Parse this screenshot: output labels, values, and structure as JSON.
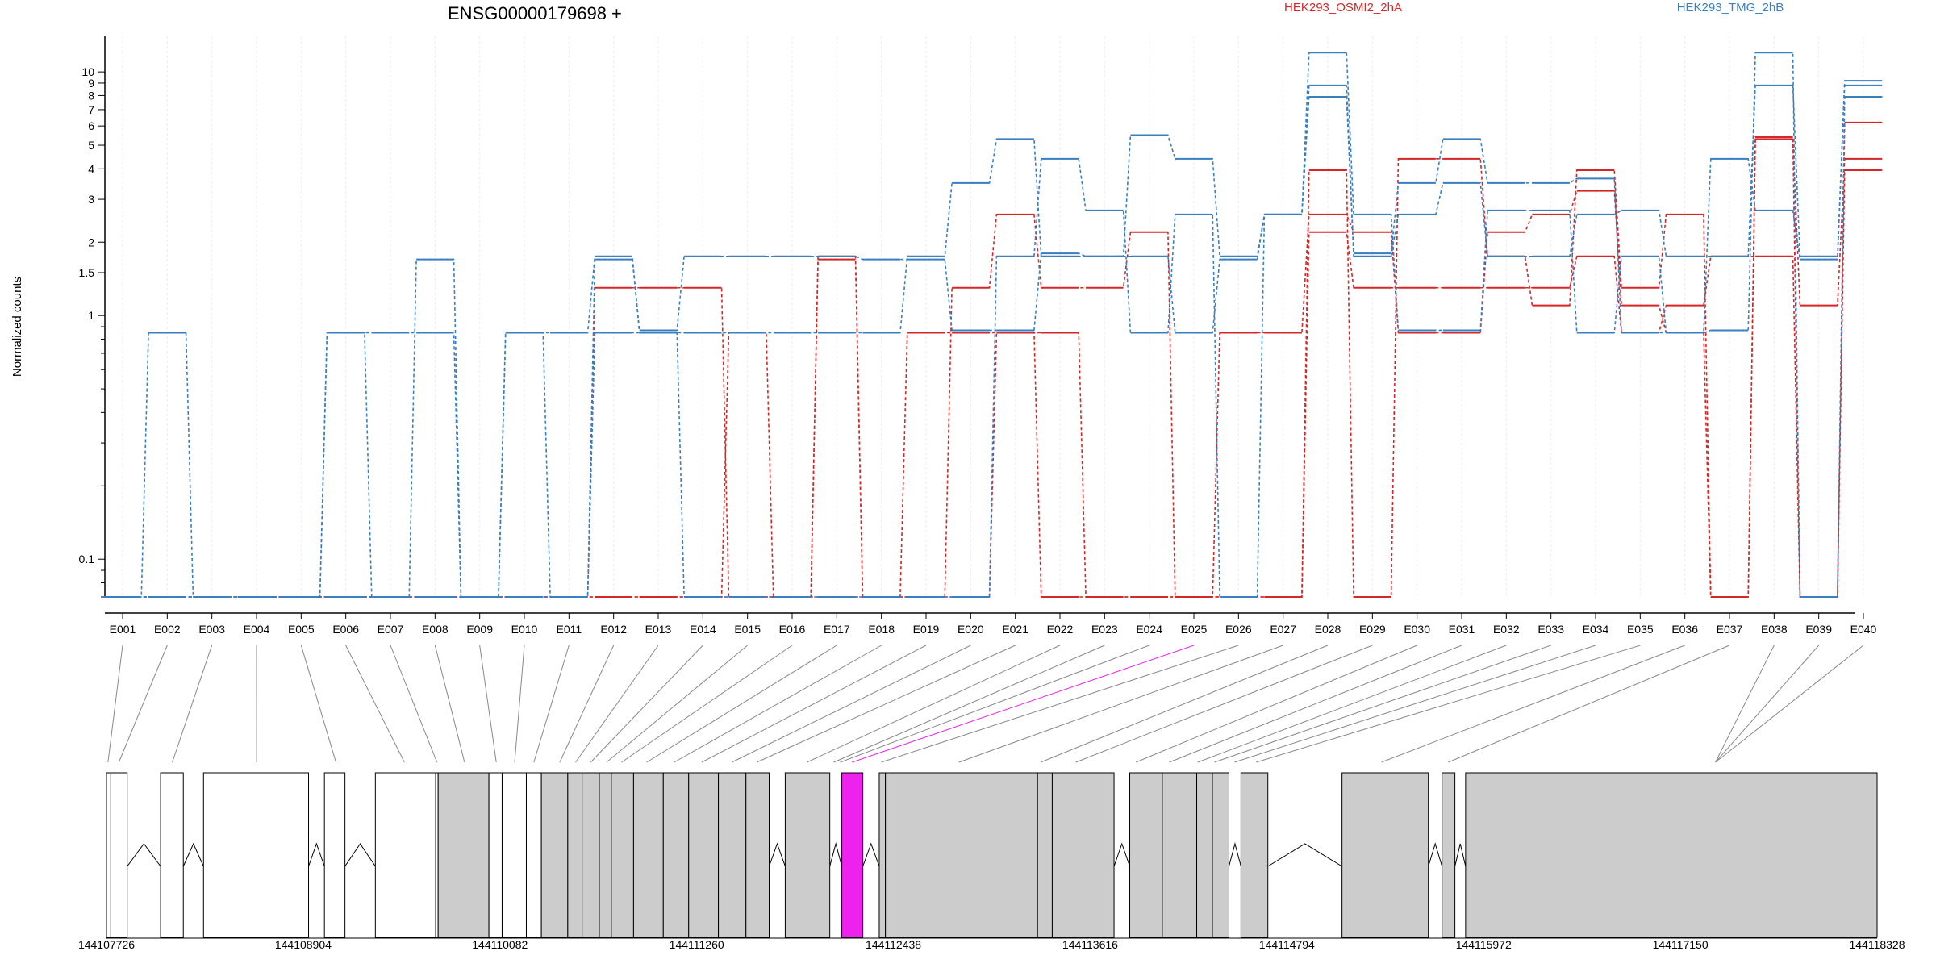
{
  "chart_data": {
    "type": "line",
    "title": "ENSG00000179698 +",
    "ylabel": "Normalized counts",
    "yscale": "log",
    "ylim": [
      0.07,
      14
    ],
    "yticks": [
      {
        "value": 0.1,
        "label": "0.1"
      },
      {
        "value": 1,
        "label": "1"
      },
      {
        "value": 1.5,
        "label": "1.5"
      },
      {
        "value": 2,
        "label": "2"
      },
      {
        "value": 3,
        "label": "3"
      },
      {
        "value": 4,
        "label": "4"
      },
      {
        "value": 5,
        "label": "5"
      },
      {
        "value": 6,
        "label": "6"
      },
      {
        "value": 7,
        "label": "7"
      },
      {
        "value": 8,
        "label": "8"
      },
      {
        "value": 9,
        "label": "9"
      },
      {
        "value": 10,
        "label": "10"
      }
    ],
    "grid": "vertical",
    "categories": [
      "E001",
      "E002",
      "E003",
      "E004",
      "E005",
      "E006",
      "E007",
      "E008",
      "E009",
      "E010",
      "E011",
      "E012",
      "E013",
      "E014",
      "E015",
      "E016",
      "E017",
      "E018",
      "E019",
      "E020",
      "E021",
      "E022",
      "E023",
      "E024",
      "E025",
      "E026",
      "E027",
      "E028",
      "E029",
      "E030",
      "E031",
      "E032",
      "E033",
      "E034",
      "E035",
      "E036",
      "E037",
      "E038",
      "E039",
      "E040"
    ],
    "legend": [
      {
        "label": "HEK293_OSMI2_2hA",
        "color": "#d62728"
      },
      {
        "label": "HEK293_TMG_2hB",
        "color": "#3a7fc1"
      }
    ],
    "series": [
      {
        "group": "HEK293_OSMI2_2hA",
        "color": "#d62728",
        "values": [
          0.07,
          0.07,
          0.07,
          0.07,
          0.07,
          0.07,
          0.07,
          0.07,
          0.07,
          0.07,
          0.07,
          0.07,
          0.07,
          0.07,
          0.07,
          0.07,
          1.75,
          0.07,
          0.85,
          0.85,
          0.85,
          0.85,
          0.07,
          0.07,
          0.07,
          0.85,
          0.85,
          2.6,
          2.2,
          0.85,
          0.85,
          2.2,
          2.6,
          3.25,
          1.1,
          0.85,
          0.07,
          5.4,
          0.07,
          6.2
        ]
      },
      {
        "group": "HEK293_OSMI2_2hA",
        "color": "#d62728",
        "values": [
          0.07,
          0.07,
          0.07,
          0.07,
          0.07,
          0.07,
          0.07,
          0.07,
          0.07,
          0.07,
          0.07,
          1.3,
          1.3,
          1.3,
          0.07,
          0.07,
          0.07,
          0.07,
          0.07,
          1.3,
          2.6,
          1.3,
          1.3,
          2.2,
          0.07,
          0.07,
          0.07,
          3.95,
          0.07,
          4.4,
          4.4,
          1.75,
          1.1,
          3.95,
          1.3,
          2.6,
          0.07,
          5.3,
          1.1,
          4.4
        ]
      },
      {
        "group": "HEK293_OSMI2_2hA",
        "color": "#d62728",
        "values": [
          0.07,
          0.07,
          0.07,
          0.07,
          0.07,
          0.07,
          0.07,
          0.07,
          0.07,
          0.07,
          0.07,
          0.07,
          0.07,
          0.07,
          0.85,
          0.07,
          1.7,
          0.07,
          0.07,
          0.07,
          0.85,
          0.07,
          0.07,
          0.07,
          0.07,
          0.07,
          0.07,
          2.2,
          1.3,
          1.3,
          1.3,
          1.3,
          1.3,
          1.75,
          0.85,
          1.1,
          1.75,
          1.75,
          0.07,
          3.95
        ]
      },
      {
        "group": "HEK293_TMG_2hB",
        "color": "#3a7fc1",
        "values": [
          0.07,
          0.85,
          0.07,
          0.07,
          0.07,
          0.85,
          0.85,
          0.85,
          0.07,
          0.85,
          0.85,
          1.75,
          0.85,
          0.85,
          0.85,
          0.85,
          0.85,
          0.85,
          1.75,
          3.5,
          5.3,
          1.75,
          1.75,
          1.75,
          0.85,
          1.7,
          2.6,
          8.8,
          1.8,
          3.5,
          5.3,
          3.5,
          3.5,
          3.65,
          0.85,
          0.85,
          4.4,
          2.7,
          1.7,
          9.2
        ]
      },
      {
        "group": "HEK293_TMG_2hB",
        "color": "#3a7fc1",
        "values": [
          0.07,
          0.07,
          0.07,
          0.07,
          0.07,
          0.07,
          0.07,
          1.7,
          0.07,
          0.07,
          0.07,
          1.7,
          0.87,
          1.75,
          1.75,
          1.75,
          1.75,
          1.7,
          1.7,
          0.87,
          0.87,
          1.8,
          1.75,
          5.5,
          4.4,
          1.75,
          2.6,
          12,
          2.6,
          0.87,
          0.87,
          2.7,
          2.7,
          0.85,
          1.75,
          0.85,
          0.87,
          12,
          0.07,
          7.9
        ]
      },
      {
        "group": "HEK293_TMG_2hB",
        "color": "#3a7fc1",
        "values": [
          0.07,
          0.07,
          0.07,
          0.07,
          0.07,
          0.85,
          0.07,
          0.07,
          0.07,
          0.85,
          0.07,
          0.85,
          0.85,
          0.07,
          0.07,
          0.07,
          0.07,
          0.07,
          0.07,
          0.07,
          1.75,
          4.4,
          2.7,
          0.85,
          2.6,
          0.07,
          2.6,
          7.9,
          1.75,
          2.6,
          3.5,
          1.75,
          1.75,
          2.6,
          2.7,
          1.75,
          1.75,
          8.8,
          1.75,
          8.8
        ]
      }
    ],
    "highlight": {
      "category": "E025",
      "color": "#ee22ee"
    },
    "genomic_axis": {
      "ticks": [
        {
          "value": 144107726,
          "label": "144107726"
        },
        {
          "value": 144108904,
          "label": "144108904"
        },
        {
          "value": 144110082,
          "label": "144110082"
        },
        {
          "value": 144111260,
          "label": "144111260"
        },
        {
          "value": 144112438,
          "label": "144112438"
        },
        {
          "value": 144113616,
          "label": "144113616"
        },
        {
          "value": 144114794,
          "label": "144114794"
        },
        {
          "value": 144115972,
          "label": "144115972"
        },
        {
          "value": 144117150,
          "label": "144117150"
        },
        {
          "value": 144118328,
          "label": "144118328"
        }
      ],
      "range": [
        144107726,
        144118328
      ]
    },
    "exon_regions": [
      {
        "id": "E001",
        "start": 144107726,
        "end": 144107752,
        "fill": "#ffffff"
      },
      {
        "id": "E002",
        "start": 144107752,
        "end": 144107850,
        "fill": "#ffffff"
      },
      {
        "id": "E003",
        "start": 144108050,
        "end": 144108186,
        "fill": "#ffffff"
      },
      {
        "id": "E004",
        "start": 144108307,
        "end": 144108936,
        "fill": "#ffffff"
      },
      {
        "id": "E005",
        "start": 144109031,
        "end": 144109154,
        "fill": "#ffffff"
      },
      {
        "id": "E006",
        "start": 144109336,
        "end": 144109697,
        "fill": "#ffffff"
      },
      {
        "id": "E007",
        "start": 144109697,
        "end": 144109712,
        "fill": "#ffffff"
      },
      {
        "id": "E008",
        "start": 144109712,
        "end": 144110016,
        "fill": "#cccccc"
      },
      {
        "id": "E009",
        "start": 144110016,
        "end": 144110095,
        "fill": "#ffffff"
      },
      {
        "id": "E010",
        "start": 144110095,
        "end": 144110240,
        "fill": "#ffffff"
      },
      {
        "id": "E011",
        "start": 144110240,
        "end": 144110330,
        "fill": "#ffffff"
      },
      {
        "id": "E012",
        "start": 144110330,
        "end": 144110488,
        "fill": "#cccccc"
      },
      {
        "id": "E013",
        "start": 144110488,
        "end": 144110574,
        "fill": "#cccccc"
      },
      {
        "id": "E014",
        "start": 144110574,
        "end": 144110677,
        "fill": "#cccccc"
      },
      {
        "id": "E015",
        "start": 144110677,
        "end": 144110749,
        "fill": "#cccccc"
      },
      {
        "id": "E016",
        "start": 144110749,
        "end": 144110882,
        "fill": "#cccccc"
      },
      {
        "id": "E017",
        "start": 144110882,
        "end": 144111060,
        "fill": "#cccccc"
      },
      {
        "id": "E018",
        "start": 144111060,
        "end": 144111212,
        "fill": "#cccccc"
      },
      {
        "id": "E019",
        "start": 144111212,
        "end": 144111390,
        "fill": "#cccccc"
      },
      {
        "id": "E020",
        "start": 144111390,
        "end": 144111555,
        "fill": "#cccccc"
      },
      {
        "id": "E021",
        "start": 144111555,
        "end": 144111694,
        "fill": "#cccccc"
      },
      {
        "id": "E022",
        "start": 144111790,
        "end": 144112057,
        "fill": "#cccccc"
      },
      {
        "id": "E025",
        "start": 144112129,
        "end": 144112255,
        "fill": "#ee22ee"
      },
      {
        "id": "E026",
        "start": 144112353,
        "end": 144112390,
        "fill": "#cccccc"
      },
      {
        "id": "E027",
        "start": 144112390,
        "end": 144113301,
        "fill": "#cccccc"
      },
      {
        "id": "E028",
        "start": 144113301,
        "end": 144113389,
        "fill": "#cccccc"
      },
      {
        "id": "E029",
        "start": 144113389,
        "end": 144113759,
        "fill": "#cccccc"
      },
      {
        "id": "E030",
        "start": 144113853,
        "end": 144114048,
        "fill": "#cccccc"
      },
      {
        "id": "E031",
        "start": 144114048,
        "end": 144114254,
        "fill": "#cccccc"
      },
      {
        "id": "E032",
        "start": 144114254,
        "end": 144114348,
        "fill": "#cccccc"
      },
      {
        "id": "E033",
        "start": 144114348,
        "end": 144114447,
        "fill": "#cccccc"
      },
      {
        "id": "E034",
        "start": 144114519,
        "end": 144114680,
        "fill": "#cccccc"
      },
      {
        "id": "E036",
        "start": 144115124,
        "end": 144115641,
        "fill": "#cccccc"
      },
      {
        "id": "E038",
        "start": 144115723,
        "end": 144115800,
        "fill": "#cccccc"
      },
      {
        "id": "E040",
        "start": 144115864,
        "end": 144118328,
        "fill": "#cccccc"
      }
    ],
    "exon_links": [
      {
        "id": "E001",
        "pos": 144107735
      },
      {
        "id": "E002",
        "pos": 144107800
      },
      {
        "id": "E003",
        "pos": 144108120
      },
      {
        "id": "E004",
        "pos": 144108625
      },
      {
        "id": "E005",
        "pos": 144109100
      },
      {
        "id": "E006",
        "pos": 144109510
      },
      {
        "id": "E007",
        "pos": 144109705
      },
      {
        "id": "E008",
        "pos": 144109870
      },
      {
        "id": "E009",
        "pos": 144110060
      },
      {
        "id": "E010",
        "pos": 144110170
      },
      {
        "id": "E011",
        "pos": 144110285
      },
      {
        "id": "E012",
        "pos": 144110440
      },
      {
        "id": "E013",
        "pos": 144110535
      },
      {
        "id": "E014",
        "pos": 144110625
      },
      {
        "id": "E015",
        "pos": 144110720
      },
      {
        "id": "E016",
        "pos": 144110810
      },
      {
        "id": "E017",
        "pos": 144110960
      },
      {
        "id": "E018",
        "pos": 144111125
      },
      {
        "id": "E019",
        "pos": 144111290
      },
      {
        "id": "E020",
        "pos": 144111470
      },
      {
        "id": "E021",
        "pos": 144111620
      },
      {
        "id": "E022",
        "pos": 144111920
      },
      {
        "id": "E023",
        "pos": 144112080
      },
      {
        "id": "E024",
        "pos": 144112120
      },
      {
        "id": "E025",
        "pos": 144112190
      },
      {
        "id": "E026",
        "pos": 144112365
      },
      {
        "id": "E027",
        "pos": 144112830
      },
      {
        "id": "E028",
        "pos": 144113320
      },
      {
        "id": "E029",
        "pos": 144113530
      },
      {
        "id": "E030",
        "pos": 144113890
      },
      {
        "id": "E031",
        "pos": 144114090
      },
      {
        "id": "E032",
        "pos": 144114260
      },
      {
        "id": "E033",
        "pos": 144114360
      },
      {
        "id": "E034",
        "pos": 144114480
      },
      {
        "id": "E035",
        "pos": 144114610
      },
      {
        "id": "E036",
        "pos": 144115360
      },
      {
        "id": "E037",
        "pos": 144115760
      },
      {
        "id": "E038",
        "pos": 144117360
      },
      {
        "id": "E039",
        "pos": 144117360
      },
      {
        "id": "E040",
        "pos": 144117360
      }
    ],
    "exon_link_overrides": {
      "E037": 144115760,
      "E038": 144117360
    }
  }
}
